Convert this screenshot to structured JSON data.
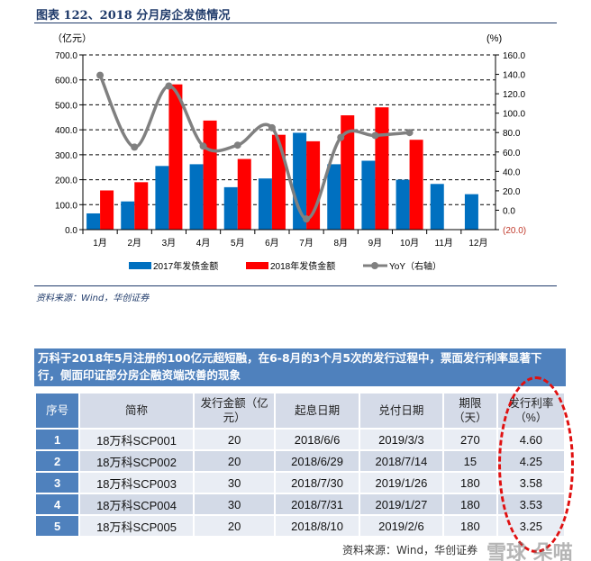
{
  "header": {
    "title": "图表 122、2018 分月房企发债情况"
  },
  "chart_data": {
    "type": "bar",
    "title": "图表 122、2018 分月房企发债情况",
    "ylabel_left": "（亿元）",
    "ylabel_right": "(%)",
    "categories": [
      "1月",
      "2月",
      "3月",
      "4月",
      "5月",
      "6月",
      "7月",
      "8月",
      "9月",
      "10月",
      "11月",
      "12月"
    ],
    "ylim_left": [
      0,
      700
    ],
    "ylim_right": [
      -20,
      160
    ],
    "yticks_left": [
      "0.0",
      "100.0",
      "200.0",
      "300.0",
      "400.0",
      "500.0",
      "600.0",
      "700.0"
    ],
    "yticks_right": [
      "(20.0)",
      "0.0",
      "20.0",
      "40.0",
      "60.0",
      "80.0",
      "100.0",
      "120.0",
      "140.0",
      "160.0"
    ],
    "grid": true,
    "legend_placement": "bottom",
    "series": [
      {
        "name": "2017年发债金额",
        "type": "bar",
        "color": "#0070c0",
        "values": [
          65,
          113,
          255,
          262,
          170,
          205,
          388,
          262,
          276,
          200,
          183,
          142
        ]
      },
      {
        "name": "2018年发债金额",
        "type": "bar",
        "color": "#ff0000",
        "values": [
          157,
          190,
          582,
          437,
          283,
          380,
          354,
          458,
          490,
          360,
          null,
          null
        ]
      },
      {
        "name": "YoY（右轴）",
        "type": "line",
        "axis": "right",
        "color": "#808080",
        "values": [
          139,
          65,
          128,
          66,
          67,
          85,
          -9,
          75,
          77,
          80,
          null,
          null
        ]
      }
    ]
  },
  "source": "资料来源：Wind，华创证券",
  "table": {
    "caption": "万科于2018年5月注册的100亿元超短融，在6-8月的3个月5次的发行过程中，票面发行利率显著下行，侧面印证部分房企融资端改善的现象",
    "headers": [
      "序号",
      "简称",
      "发行金额（亿元）",
      "起息日期",
      "兑付日期",
      "期限（天）",
      "发行利率（%）"
    ],
    "rows": [
      [
        "1",
        "18万科SCP001",
        "20",
        "2018/6/6",
        "2019/3/3",
        "270",
        "4.60"
      ],
      [
        "2",
        "18万科SCP002",
        "20",
        "2018/6/29",
        "2018/7/14",
        "15",
        "4.25"
      ],
      [
        "3",
        "18万科SCP003",
        "30",
        "2018/7/30",
        "2019/1/26",
        "180",
        "3.58"
      ],
      [
        "4",
        "18万科SCP004",
        "30",
        "2018/7/31",
        "2019/1/27",
        "180",
        "3.53"
      ],
      [
        "5",
        "18万科SCP005",
        "20",
        "2018/8/10",
        "2019/2/6",
        "180",
        "3.25"
      ]
    ],
    "footer": "资料来源：Wind，华创证券",
    "highlight_color": "#e01010"
  },
  "watermark": "雪球 朵喵"
}
